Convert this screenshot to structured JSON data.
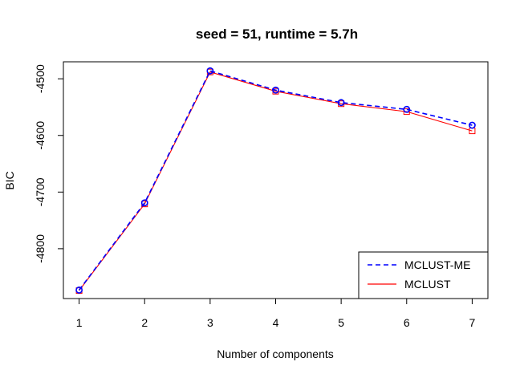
{
  "chart_data": {
    "type": "line",
    "title": "seed = 51, runtime = 5.7h",
    "xlabel": "Number of components",
    "ylabel": "BIC",
    "x": [
      1,
      2,
      3,
      4,
      5,
      6,
      7
    ],
    "xlim": [
      0.76,
      7.24
    ],
    "ylim": [
      -4888,
      -4470
    ],
    "xticks": [
      "1",
      "2",
      "3",
      "4",
      "5",
      "6",
      "7"
    ],
    "yticks": [
      -4800,
      -4700,
      -4600,
      -4500
    ],
    "ytick_labels": [
      "-4800",
      "-4700",
      "-4600",
      "-4500"
    ],
    "legend_position": "bottom-right",
    "series": [
      {
        "name": "MCLUST-ME",
        "color": "#0000ff",
        "line_style": "dashed",
        "marker": "circle",
        "values": [
          -4873,
          -4719,
          -4486,
          -4520,
          -4542,
          -4554,
          -4582
        ]
      },
      {
        "name": "MCLUST",
        "color": "#ff0000",
        "line_style": "solid",
        "marker": "square",
        "values": [
          -4874,
          -4721,
          -4488,
          -4522,
          -4544,
          -4558,
          -4592
        ]
      }
    ]
  }
}
